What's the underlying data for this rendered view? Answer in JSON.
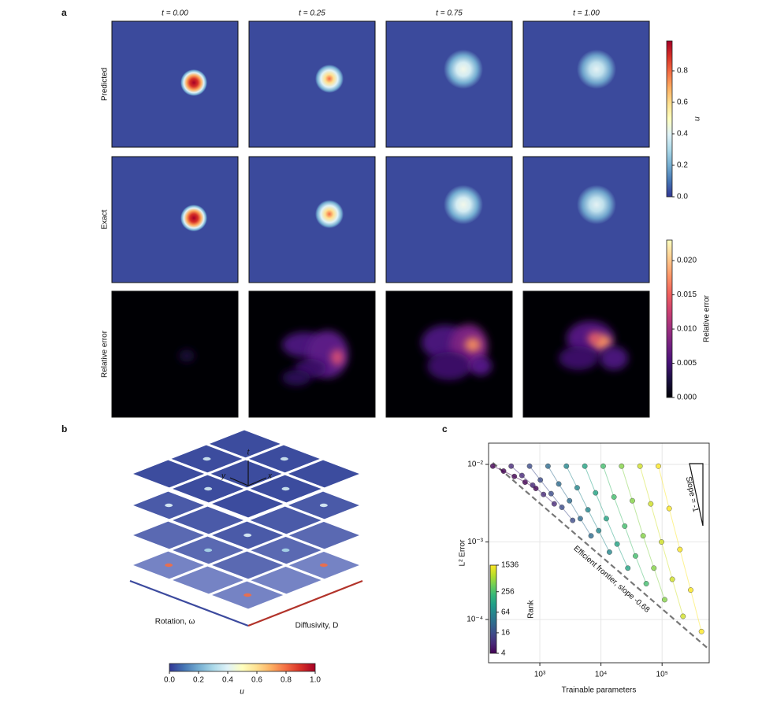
{
  "panel_labels": {
    "a": "a",
    "b": "b",
    "c": "c"
  },
  "panel_a": {
    "column_titles": [
      "t = 0.00",
      "t = 0.25",
      "t = 0.75",
      "t = 1.00"
    ],
    "row_labels": [
      "Predicted",
      "Exact",
      "Relative error"
    ],
    "colorbar_u": {
      "label": "u",
      "lim": [
        0,
        0.99
      ],
      "ticks": [
        {
          "value": 0,
          "label": "0.0"
        },
        {
          "value": 0.2,
          "label": "0.2"
        },
        {
          "value": 0.4,
          "label": "0.4"
        },
        {
          "value": 0.6,
          "label": "0.6"
        },
        {
          "value": 0.8,
          "label": "0.8"
        }
      ]
    },
    "colorbar_error": {
      "label": "Relative error",
      "lim": [
        0,
        0.023
      ],
      "ticks": [
        {
          "value": 0,
          "label": "0.000"
        },
        {
          "value": 0.005,
          "label": "0.005"
        },
        {
          "value": 0.01,
          "label": "0.010"
        },
        {
          "value": 0.015,
          "label": "0.015"
        },
        {
          "value": 0.02,
          "label": "0.020"
        }
      ]
    }
  },
  "panel_b": {
    "axis_labels": {
      "t": "t",
      "x": "x",
      "y": "y"
    },
    "rotation_label": "Rotation, ω",
    "diffusivity_label": "Diffusivity, D",
    "colorbar": {
      "label": "u",
      "lim": [
        0,
        1
      ],
      "ticks": [
        {
          "value": 0,
          "label": "0.0"
        },
        {
          "value": 0.2,
          "label": "0.2"
        },
        {
          "value": 0.4,
          "label": "0.4"
        },
        {
          "value": 0.6,
          "label": "0.6"
        },
        {
          "value": 0.8,
          "label": "0.8"
        },
        {
          "value": 1,
          "label": "1.0"
        }
      ]
    }
  },
  "chart_data": {
    "type": "scatter",
    "xlabel": "Trainable parameters",
    "ylabel": "L² Error",
    "log_x": true,
    "log_y": true,
    "grid": true,
    "xlim": [
      145,
      590000
    ],
    "ylim": [
      2.77e-05,
      0.0188
    ],
    "xticks": [
      {
        "value": 1000,
        "label": "10³"
      },
      {
        "value": 10000,
        "label": "10⁴"
      },
      {
        "value": 100000,
        "label": "10⁵"
      }
    ],
    "yticks": [
      {
        "value": 0.0001,
        "label": "10⁻⁴"
      },
      {
        "value": 0.001,
        "label": "10⁻³"
      },
      {
        "value": 0.01,
        "label": "10⁻²"
      }
    ],
    "series": [
      {
        "rank": 4,
        "x": [
          170,
          255,
          383,
          574,
          861
        ],
        "values": [
          0.0095,
          0.0082,
          0.007,
          0.0059,
          0.0049
        ]
      },
      {
        "rank": 8,
        "x": [
          340,
          510,
          765,
          1148,
          1721
        ],
        "values": [
          0.0095,
          0.0072,
          0.0054,
          0.0041,
          0.0031
        ]
      },
      {
        "rank": 16,
        "x": [
          680,
          1020,
          1530,
          2295,
          3443
        ],
        "values": [
          0.0095,
          0.0063,
          0.0042,
          0.0028,
          0.0019
        ]
      },
      {
        "rank": 32,
        "x": [
          1360,
          2040,
          3060,
          4590,
          6885
        ],
        "values": [
          0.0095,
          0.0056,
          0.0034,
          0.002,
          0.0012
        ]
      },
      {
        "rank": 64,
        "x": [
          2720,
          4080,
          6120,
          9180,
          13770
        ],
        "values": [
          0.0095,
          0.005,
          0.0026,
          0.0014,
          0.00074
        ]
      },
      {
        "rank": 128,
        "x": [
          5440,
          8160,
          12240,
          18360,
          27540
        ],
        "values": [
          0.0095,
          0.0043,
          0.002,
          0.00094,
          0.00046
        ]
      },
      {
        "rank": 256,
        "x": [
          10880,
          16320,
          24480,
          36720,
          55080
        ],
        "values": [
          0.0095,
          0.0038,
          0.0016,
          0.00066,
          0.00029
        ]
      },
      {
        "rank": 512,
        "x": [
          21760,
          32640,
          48960,
          73440,
          110200
        ],
        "values": [
          0.0095,
          0.0034,
          0.0012,
          0.00046,
          0.00018
        ]
      },
      {
        "rank": 1024,
        "x": [
          43520,
          65280,
          97920,
          146900,
          220300
        ],
        "values": [
          0.0095,
          0.0031,
          0.001,
          0.00033,
          0.00011
        ]
      },
      {
        "rank": 1536,
        "x": [
          87040,
          130600,
          195800,
          293800,
          440600
        ],
        "values": [
          0.0095,
          0.0027,
          0.0008,
          0.00024,
          7e-05
        ]
      }
    ],
    "colorbar": {
      "label": "Rank",
      "lim": [
        4,
        1536
      ],
      "log": true,
      "ticks": [
        4,
        16,
        64,
        256,
        1536
      ]
    },
    "frontier": {
      "label": "Efficient frontier, slope -0.68",
      "x": [
        170,
        590000
      ],
      "values": [
        0.0105,
        4.1e-05
      ]
    },
    "slope_label": "Slope = -1"
  }
}
